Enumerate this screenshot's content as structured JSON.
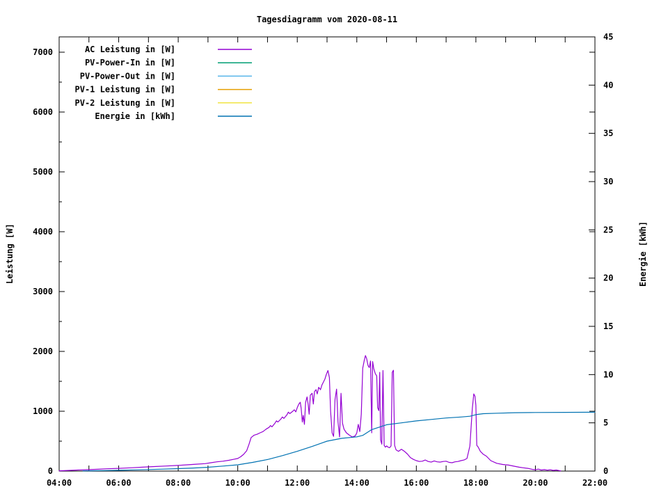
{
  "title": "Tagesdiagramm vom 2020-08-11",
  "axes": {
    "x": {
      "tick_hours": [
        4,
        6,
        8,
        10,
        12,
        14,
        16,
        18,
        20,
        22
      ],
      "tick_labels": [
        "04:00",
        "06:00",
        "08:00",
        "10:00",
        "12:00",
        "14:00",
        "16:00",
        "18:00",
        "20:00",
        "22:00"
      ],
      "minor_hours": [
        5,
        7,
        9,
        11,
        13,
        15,
        17,
        19,
        21
      ],
      "range_hours": [
        4,
        22
      ]
    },
    "y_left": {
      "label": "Leistung [W]",
      "tick_values": [
        0,
        1000,
        2000,
        3000,
        4000,
        5000,
        6000,
        7000
      ],
      "minor_step": 500,
      "range": [
        0,
        7250
      ]
    },
    "y_right": {
      "label": "Energie [kWh]",
      "tick_values": [
        0,
        5,
        10,
        15,
        20,
        25,
        30,
        35,
        40,
        45
      ],
      "range": [
        0,
        45
      ]
    }
  },
  "chart_data": {
    "type": "line",
    "title": "Tagesdiagramm vom 2020-08-11",
    "xlabel": "",
    "x_unit": "hour of day",
    "ylabel_left": "Leistung [W]",
    "ylabel_right": "Energie [kWh]",
    "x_range_hours": [
      4,
      22
    ],
    "y_left_range": [
      0,
      7250
    ],
    "y_right_range": [
      0,
      45
    ],
    "grid": false,
    "legend_position": "top-left-inside",
    "series": [
      {
        "name": "AC Leistung in [W]",
        "color": "#9400d3",
        "axis": "left",
        "points": [
          [
            4.0,
            5
          ],
          [
            4.3,
            10
          ],
          [
            4.7,
            20
          ],
          [
            5.0,
            25
          ],
          [
            5.3,
            30
          ],
          [
            5.6,
            38
          ],
          [
            6.0,
            45
          ],
          [
            6.4,
            55
          ],
          [
            6.8,
            65
          ],
          [
            7.2,
            75
          ],
          [
            7.6,
            85
          ],
          [
            8.0,
            95
          ],
          [
            8.3,
            105
          ],
          [
            8.6,
            115
          ],
          [
            8.9,
            125
          ],
          [
            9.1,
            140
          ],
          [
            9.3,
            155
          ],
          [
            9.5,
            165
          ],
          [
            9.7,
            180
          ],
          [
            9.85,
            195
          ],
          [
            10.0,
            210
          ],
          [
            10.1,
            240
          ],
          [
            10.2,
            280
          ],
          [
            10.3,
            340
          ],
          [
            10.38,
            450
          ],
          [
            10.45,
            560
          ],
          [
            10.55,
            600
          ],
          [
            10.65,
            615
          ],
          [
            10.75,
            640
          ],
          [
            10.85,
            660
          ],
          [
            10.95,
            700
          ],
          [
            11.05,
            730
          ],
          [
            11.1,
            760
          ],
          [
            11.15,
            740
          ],
          [
            11.25,
            800
          ],
          [
            11.3,
            840
          ],
          [
            11.35,
            820
          ],
          [
            11.45,
            870
          ],
          [
            11.5,
            905
          ],
          [
            11.55,
            880
          ],
          [
            11.65,
            940
          ],
          [
            11.7,
            985
          ],
          [
            11.75,
            960
          ],
          [
            11.85,
            1000
          ],
          [
            11.9,
            1025
          ],
          [
            11.95,
            990
          ],
          [
            12.0,
            1060
          ],
          [
            12.05,
            1120
          ],
          [
            12.1,
            1150
          ],
          [
            12.13,
            1050
          ],
          [
            12.17,
            820
          ],
          [
            12.2,
            930
          ],
          [
            12.24,
            780
          ],
          [
            12.28,
            1150
          ],
          [
            12.33,
            1240
          ],
          [
            12.37,
            1100
          ],
          [
            12.4,
            950
          ],
          [
            12.44,
            1270
          ],
          [
            12.5,
            1300
          ],
          [
            12.54,
            1120
          ],
          [
            12.58,
            1330
          ],
          [
            12.63,
            1360
          ],
          [
            12.67,
            1290
          ],
          [
            12.72,
            1400
          ],
          [
            12.78,
            1360
          ],
          [
            12.83,
            1440
          ],
          [
            12.88,
            1490
          ],
          [
            12.93,
            1540
          ],
          [
            12.98,
            1620
          ],
          [
            13.03,
            1680
          ],
          [
            13.08,
            1560
          ],
          [
            13.12,
            1000
          ],
          [
            13.17,
            640
          ],
          [
            13.22,
            580
          ],
          [
            13.27,
            1200
          ],
          [
            13.32,
            1370
          ],
          [
            13.37,
            820
          ],
          [
            13.42,
            570
          ],
          [
            13.47,
            1300
          ],
          [
            13.52,
            800
          ],
          [
            13.57,
            700
          ],
          [
            13.65,
            640
          ],
          [
            13.75,
            600
          ],
          [
            13.85,
            570
          ],
          [
            13.95,
            590
          ],
          [
            14.0,
            640
          ],
          [
            14.05,
            780
          ],
          [
            14.1,
            660
          ],
          [
            14.15,
            950
          ],
          [
            14.2,
            1720
          ],
          [
            14.25,
            1850
          ],
          [
            14.29,
            1930
          ],
          [
            14.33,
            1880
          ],
          [
            14.38,
            1760
          ],
          [
            14.42,
            1730
          ],
          [
            14.46,
            1840
          ],
          [
            14.5,
            640
          ],
          [
            14.53,
            1830
          ],
          [
            14.57,
            1710
          ],
          [
            14.62,
            1630
          ],
          [
            14.67,
            1590
          ],
          [
            14.7,
            1060
          ],
          [
            14.74,
            1010
          ],
          [
            14.77,
            1650
          ],
          [
            14.8,
            520
          ],
          [
            14.84,
            450
          ],
          [
            14.88,
            1680
          ],
          [
            14.92,
            430
          ],
          [
            14.96,
            400
          ],
          [
            15.0,
            420
          ],
          [
            15.05,
            400
          ],
          [
            15.1,
            390
          ],
          [
            15.15,
            420
          ],
          [
            15.19,
            1650
          ],
          [
            15.23,
            1685
          ],
          [
            15.27,
            430
          ],
          [
            15.32,
            355
          ],
          [
            15.4,
            330
          ],
          [
            15.5,
            365
          ],
          [
            15.6,
            330
          ],
          [
            15.7,
            285
          ],
          [
            15.8,
            225
          ],
          [
            15.9,
            195
          ],
          [
            16.0,
            175
          ],
          [
            16.1,
            160
          ],
          [
            16.2,
            165
          ],
          [
            16.3,
            185
          ],
          [
            16.4,
            160
          ],
          [
            16.5,
            150
          ],
          [
            16.6,
            170
          ],
          [
            16.7,
            155
          ],
          [
            16.8,
            150
          ],
          [
            16.9,
            160
          ],
          [
            17.0,
            165
          ],
          [
            17.1,
            145
          ],
          [
            17.2,
            140
          ],
          [
            17.3,
            155
          ],
          [
            17.4,
            160
          ],
          [
            17.5,
            175
          ],
          [
            17.6,
            185
          ],
          [
            17.7,
            210
          ],
          [
            17.8,
            420
          ],
          [
            17.88,
            1050
          ],
          [
            17.93,
            1290
          ],
          [
            17.97,
            1250
          ],
          [
            18.0,
            1100
          ],
          [
            18.03,
            430
          ],
          [
            18.08,
            400
          ],
          [
            18.15,
            330
          ],
          [
            18.25,
            280
          ],
          [
            18.35,
            250
          ],
          [
            18.5,
            175
          ],
          [
            18.7,
            130
          ],
          [
            18.9,
            110
          ],
          [
            19.1,
            100
          ],
          [
            19.3,
            80
          ],
          [
            19.45,
            65
          ],
          [
            19.6,
            55
          ],
          [
            19.75,
            45
          ],
          [
            19.9,
            28
          ],
          [
            20.0,
            22
          ],
          [
            20.1,
            32
          ],
          [
            20.2,
            18
          ],
          [
            20.3,
            25
          ],
          [
            20.4,
            15
          ],
          [
            20.5,
            22
          ],
          [
            20.6,
            12
          ],
          [
            20.7,
            18
          ],
          [
            20.8,
            8
          ],
          [
            20.85,
            3
          ]
        ]
      },
      {
        "name": "PV-Power-In in [W]",
        "color": "#009e73",
        "axis": "left",
        "points": []
      },
      {
        "name": "PV-Power-Out in [W]",
        "color": "#56b4e9",
        "axis": "left",
        "points": []
      },
      {
        "name": "PV-1 Leistung in [W]",
        "color": "#e69f00",
        "axis": "left",
        "points": []
      },
      {
        "name": "PV-2 Leistung in [W]",
        "color": "#f0e442",
        "axis": "left",
        "points": []
      },
      {
        "name": "Energie in [kWh]",
        "color": "#0072b2",
        "axis": "right",
        "points": [
          [
            4.8,
            0.02
          ],
          [
            5.5,
            0.05
          ],
          [
            6.0,
            0.08
          ],
          [
            6.5,
            0.12
          ],
          [
            7.0,
            0.16
          ],
          [
            7.5,
            0.2
          ],
          [
            8.0,
            0.25
          ],
          [
            8.5,
            0.32
          ],
          [
            9.0,
            0.4
          ],
          [
            9.5,
            0.52
          ],
          [
            10.0,
            0.65
          ],
          [
            10.5,
            0.9
          ],
          [
            11.0,
            1.2
          ],
          [
            11.5,
            1.6
          ],
          [
            12.0,
            2.05
          ],
          [
            12.5,
            2.55
          ],
          [
            13.0,
            3.1
          ],
          [
            13.5,
            3.4
          ],
          [
            14.0,
            3.55
          ],
          [
            14.2,
            3.7
          ],
          [
            14.5,
            4.3
          ],
          [
            14.75,
            4.55
          ],
          [
            15.0,
            4.8
          ],
          [
            15.5,
            5.0
          ],
          [
            16.0,
            5.2
          ],
          [
            16.5,
            5.35
          ],
          [
            17.0,
            5.5
          ],
          [
            17.5,
            5.6
          ],
          [
            17.8,
            5.68
          ],
          [
            18.0,
            5.85
          ],
          [
            18.25,
            5.95
          ],
          [
            18.75,
            6.0
          ],
          [
            19.3,
            6.05
          ],
          [
            20.0,
            6.07
          ],
          [
            21.0,
            6.09
          ],
          [
            22.0,
            6.1
          ]
        ]
      }
    ]
  },
  "colors": {
    "axis": "#000000",
    "background": "#ffffff"
  }
}
